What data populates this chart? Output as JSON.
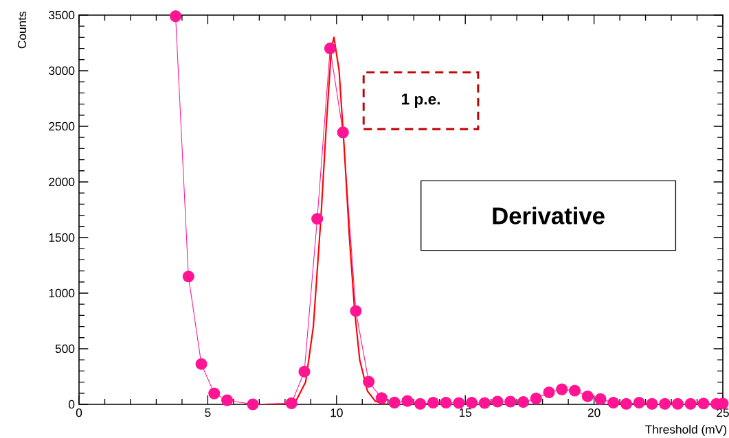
{
  "chart_data": {
    "type": "line",
    "xlabel": "Threshold (mV)",
    "ylabel": "Counts",
    "annotations": [
      "1 p.e.",
      "Derivative"
    ],
    "xlim": [
      0,
      25
    ],
    "ylim": [
      0,
      3500
    ],
    "xticks": [
      0,
      5,
      10,
      15,
      20,
      25
    ],
    "yticks": [
      0,
      500,
      1000,
      1500,
      2000,
      2500,
      3000,
      3500
    ],
    "grid": false,
    "series": [
      {
        "marker": "circle",
        "color": "#ff1493",
        "x": [
          3.75,
          4.25,
          4.75,
          5.25,
          5.75,
          6.75,
          8.25,
          8.75,
          9.25,
          9.75,
          10.25,
          10.75,
          11.25,
          11.75,
          12.25,
          12.75,
          13.25,
          13.75,
          14.25,
          14.75,
          15.25,
          15.75,
          16.25,
          16.75,
          17.25,
          17.75,
          18.25,
          18.75,
          19.25,
          19.75,
          20.25,
          20.75,
          21.25,
          21.75,
          22.25,
          22.75,
          23.25,
          23.75,
          24.25,
          24.75,
          25
        ],
        "values": [
          3490,
          1150,
          363,
          98,
          37,
          0,
          10,
          295,
          1668,
          3200,
          2445,
          839,
          203,
          57,
          16,
          30,
          5,
          15,
          15,
          12,
          15,
          12,
          25,
          25,
          21,
          53,
          108,
          135,
          123,
          72,
          47,
          15,
          5,
          15,
          5,
          5,
          5,
          5,
          8,
          5,
          8
        ]
      },
      {
        "marker": "none",
        "color": "#ff0000",
        "x": [
          7.25,
          8.0,
          8.4,
          8.8,
          9.1,
          9.4,
          9.6,
          9.8,
          9.9,
          10.1,
          10.3,
          10.5,
          10.7,
          10.9,
          11.2,
          11.5,
          11.8,
          12.0
        ],
        "values": [
          0,
          0,
          20,
          200,
          700,
          1700,
          2500,
          3200,
          3300,
          3000,
          2300,
          1500,
          850,
          400,
          120,
          30,
          5,
          0
        ]
      }
    ]
  }
}
